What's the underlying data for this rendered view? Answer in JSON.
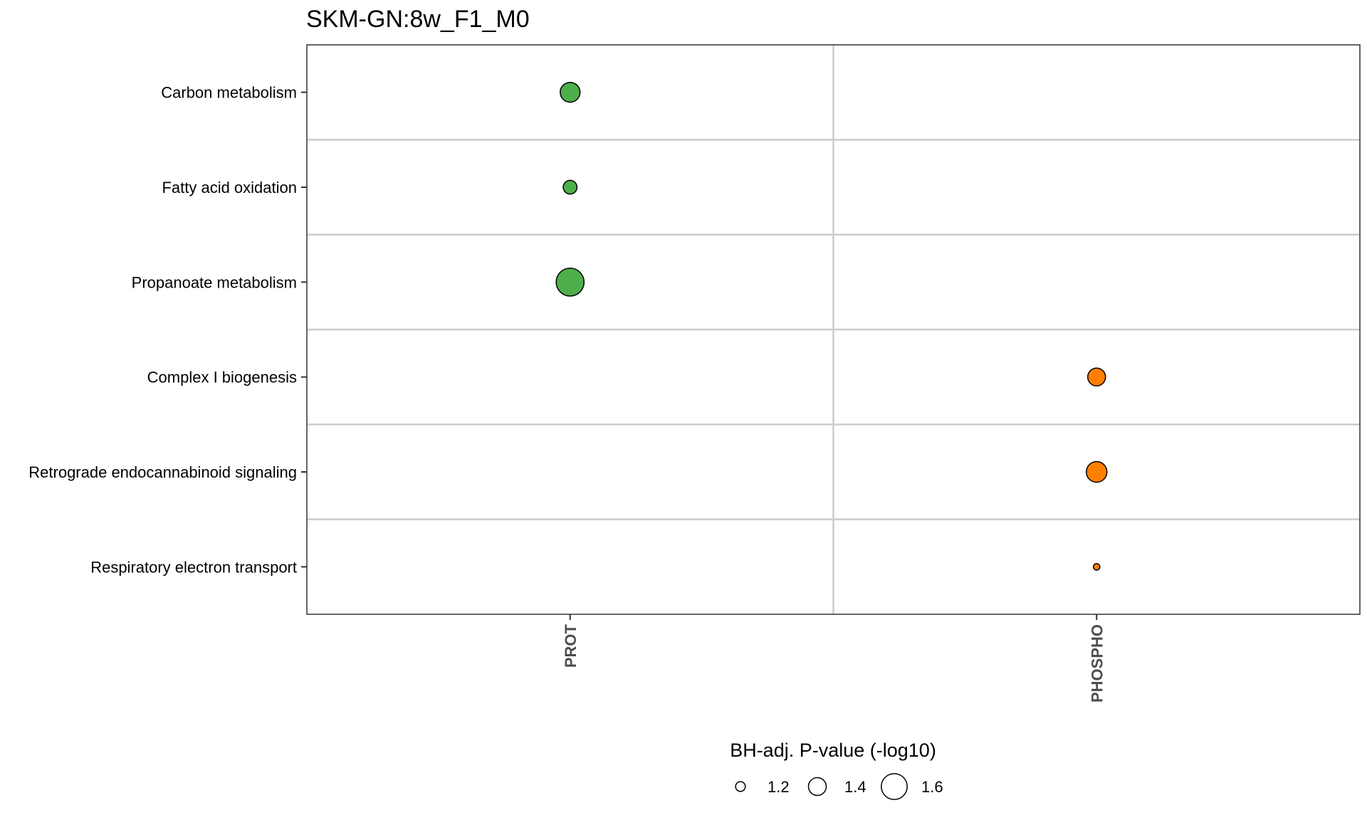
{
  "chart_data": {
    "type": "scatter",
    "title": "SKM-GN:8w_F1_M0",
    "x_categories": [
      "PROT",
      "PHOSPHO"
    ],
    "y_categories": [
      "Carbon metabolism",
      "Fatty acid oxidation",
      "Propanoate metabolism",
      "Complex I biogenesis",
      "Retrograde endocannabinoid signaling",
      "Respiratory electron transport"
    ],
    "points": [
      {
        "x": "PROT",
        "y": "Carbon metabolism",
        "size_value": 1.45,
        "color": "#4daf4a"
      },
      {
        "x": "PROT",
        "y": "Fatty acid oxidation",
        "size_value": 1.3,
        "color": "#4daf4a"
      },
      {
        "x": "PROT",
        "y": "Propanoate metabolism",
        "size_value": 1.65,
        "color": "#4daf4a"
      },
      {
        "x": "PHOSPHO",
        "y": "Complex I biogenesis",
        "size_value": 1.4,
        "color": "#ff7f00"
      },
      {
        "x": "PHOSPHO",
        "y": "Retrograde endocannabinoid signaling",
        "size_value": 1.47,
        "color": "#ff7f00"
      },
      {
        "x": "PHOSPHO",
        "y": "Respiratory electron transport",
        "size_value": 1.12,
        "color": "#ff7f00"
      }
    ],
    "legend": {
      "title": "BH-adj. P-value (-log10)",
      "values": [
        1.2,
        1.4,
        1.6
      ],
      "labels": [
        "1.2",
        "1.4",
        "1.6"
      ],
      "placement": "bottom"
    },
    "size_range": [
      1.1,
      1.7
    ],
    "grid": true
  }
}
